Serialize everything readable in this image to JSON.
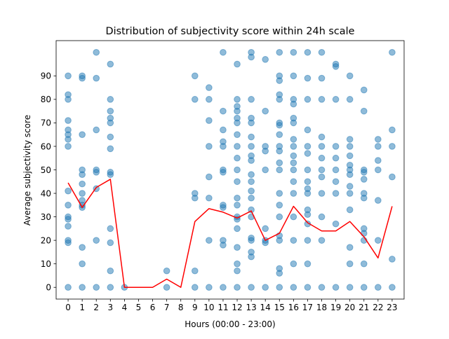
{
  "chart_data": {
    "type": "scatter",
    "title": "Distribution of subjectivity score within 24h scale",
    "xlabel": "Hours (00:00 - 23:00)",
    "ylabel": "Average subjectivity score",
    "xlim": [
      -0.85,
      23.85
    ],
    "ylim": [
      -5,
      105
    ],
    "x_ticks": [
      0,
      1,
      2,
      3,
      4,
      5,
      6,
      7,
      8,
      9,
      10,
      11,
      12,
      13,
      14,
      15,
      16,
      17,
      18,
      19,
      20,
      21,
      22,
      23
    ],
    "y_ticks": [
      0,
      10,
      20,
      30,
      40,
      50,
      60,
      70,
      80,
      90
    ],
    "grid": false,
    "legend": "none",
    "colors": {
      "scatter": "#1f77b4",
      "line": "#ff0000"
    },
    "series": [
      {
        "kind": "scatter",
        "points": [
          [
            0,
            0
          ],
          [
            0,
            19
          ],
          [
            0,
            20
          ],
          [
            0,
            26
          ],
          [
            0,
            29
          ],
          [
            0,
            30
          ],
          [
            0,
            35
          ],
          [
            0,
            41
          ],
          [
            0,
            60
          ],
          [
            0,
            63
          ],
          [
            0,
            65
          ],
          [
            0,
            67
          ],
          [
            0,
            71
          ],
          [
            0,
            80
          ],
          [
            0,
            82
          ],
          [
            0,
            90
          ],
          [
            1,
            0
          ],
          [
            1,
            10
          ],
          [
            1,
            17
          ],
          [
            1,
            34
          ],
          [
            1,
            35
          ],
          [
            1,
            37
          ],
          [
            1,
            40
          ],
          [
            1,
            44
          ],
          [
            1,
            48
          ],
          [
            1,
            50
          ],
          [
            1,
            65
          ],
          [
            1,
            89
          ],
          [
            1,
            90
          ],
          [
            2,
            0
          ],
          [
            2,
            20
          ],
          [
            2,
            42
          ],
          [
            2,
            49
          ],
          [
            2,
            50
          ],
          [
            2,
            67
          ],
          [
            2,
            89
          ],
          [
            2,
            100
          ],
          [
            3,
            0
          ],
          [
            3,
            7
          ],
          [
            3,
            19
          ],
          [
            3,
            25
          ],
          [
            3,
            48
          ],
          [
            3,
            49
          ],
          [
            3,
            59
          ],
          [
            3,
            64
          ],
          [
            3,
            70
          ],
          [
            3,
            72
          ],
          [
            3,
            75
          ],
          [
            3,
            80
          ],
          [
            3,
            95
          ],
          [
            4,
            0
          ],
          [
            7,
            0
          ],
          [
            7,
            7
          ],
          [
            9,
            0
          ],
          [
            9,
            7
          ],
          [
            9,
            38
          ],
          [
            9,
            40
          ],
          [
            9,
            80
          ],
          [
            9,
            90
          ],
          [
            10,
            0
          ],
          [
            10,
            20
          ],
          [
            10,
            38
          ],
          [
            10,
            47
          ],
          [
            10,
            60
          ],
          [
            10,
            71
          ],
          [
            10,
            80
          ],
          [
            10,
            85
          ],
          [
            11,
            0
          ],
          [
            11,
            18
          ],
          [
            11,
            20
          ],
          [
            11,
            34
          ],
          [
            11,
            35
          ],
          [
            11,
            49
          ],
          [
            11,
            50
          ],
          [
            11,
            60
          ],
          [
            11,
            62
          ],
          [
            11,
            67
          ],
          [
            11,
            75
          ],
          [
            11,
            100
          ],
          [
            12,
            0
          ],
          [
            12,
            7
          ],
          [
            12,
            10
          ],
          [
            12,
            17
          ],
          [
            12,
            25
          ],
          [
            12,
            29
          ],
          [
            12,
            30
          ],
          [
            12,
            35
          ],
          [
            12,
            38
          ],
          [
            12,
            45
          ],
          [
            12,
            50
          ],
          [
            12,
            55
          ],
          [
            12,
            60
          ],
          [
            12,
            65
          ],
          [
            12,
            70
          ],
          [
            12,
            72
          ],
          [
            12,
            75
          ],
          [
            12,
            77
          ],
          [
            12,
            80
          ],
          [
            12,
            95
          ],
          [
            13,
            0
          ],
          [
            13,
            13
          ],
          [
            13,
            15
          ],
          [
            13,
            20
          ],
          [
            13,
            21
          ],
          [
            13,
            30
          ],
          [
            13,
            33
          ],
          [
            13,
            38
          ],
          [
            13,
            41
          ],
          [
            13,
            45
          ],
          [
            13,
            48
          ],
          [
            13,
            54
          ],
          [
            13,
            56
          ],
          [
            13,
            60
          ],
          [
            13,
            64
          ],
          [
            13,
            70
          ],
          [
            13,
            72
          ],
          [
            13,
            80
          ],
          [
            13,
            98
          ],
          [
            13,
            100
          ],
          [
            14,
            0
          ],
          [
            14,
            19
          ],
          [
            14,
            20
          ],
          [
            14,
            25
          ],
          [
            14,
            50
          ],
          [
            14,
            58
          ],
          [
            14,
            60
          ],
          [
            14,
            75
          ],
          [
            14,
            97
          ],
          [
            15,
            0
          ],
          [
            15,
            6
          ],
          [
            15,
            8
          ],
          [
            15,
            20
          ],
          [
            15,
            22
          ],
          [
            15,
            30
          ],
          [
            15,
            35
          ],
          [
            15,
            40
          ],
          [
            15,
            50
          ],
          [
            15,
            53
          ],
          [
            15,
            58
          ],
          [
            15,
            60
          ],
          [
            15,
            65
          ],
          [
            15,
            69
          ],
          [
            15,
            70
          ],
          [
            15,
            80
          ],
          [
            15,
            82
          ],
          [
            15,
            88
          ],
          [
            15,
            90
          ],
          [
            15,
            100
          ],
          [
            16,
            0
          ],
          [
            16,
            10
          ],
          [
            16,
            20
          ],
          [
            16,
            30
          ],
          [
            16,
            40
          ],
          [
            16,
            45
          ],
          [
            16,
            50
          ],
          [
            16,
            53
          ],
          [
            16,
            56
          ],
          [
            16,
            60
          ],
          [
            16,
            63
          ],
          [
            16,
            70
          ],
          [
            16,
            72
          ],
          [
            16,
            78
          ],
          [
            16,
            80
          ],
          [
            16,
            90
          ],
          [
            16,
            100
          ],
          [
            17,
            0
          ],
          [
            17,
            10
          ],
          [
            17,
            20
          ],
          [
            17,
            27
          ],
          [
            17,
            31
          ],
          [
            17,
            33
          ],
          [
            17,
            40
          ],
          [
            17,
            42
          ],
          [
            17,
            45
          ],
          [
            17,
            50
          ],
          [
            17,
            57
          ],
          [
            17,
            60
          ],
          [
            17,
            67
          ],
          [
            17,
            80
          ],
          [
            17,
            89
          ],
          [
            17,
            100
          ],
          [
            18,
            0
          ],
          [
            18,
            20
          ],
          [
            18,
            30
          ],
          [
            18,
            40
          ],
          [
            18,
            47
          ],
          [
            18,
            50
          ],
          [
            18,
            55
          ],
          [
            18,
            60
          ],
          [
            18,
            64
          ],
          [
            18,
            80
          ],
          [
            18,
            89
          ],
          [
            18,
            100
          ],
          [
            19,
            0
          ],
          [
            19,
            27
          ],
          [
            19,
            40
          ],
          [
            19,
            45
          ],
          [
            19,
            50
          ],
          [
            19,
            55
          ],
          [
            19,
            60
          ],
          [
            19,
            80
          ],
          [
            19,
            94
          ],
          [
            19,
            95
          ],
          [
            20,
            0
          ],
          [
            20,
            10
          ],
          [
            20,
            17
          ],
          [
            20,
            33
          ],
          [
            20,
            40
          ],
          [
            20,
            43
          ],
          [
            20,
            48
          ],
          [
            20,
            50
          ],
          [
            20,
            52
          ],
          [
            20,
            56
          ],
          [
            20,
            60
          ],
          [
            20,
            63
          ],
          [
            20,
            80
          ],
          [
            20,
            90
          ],
          [
            21,
            0
          ],
          [
            21,
            10
          ],
          [
            21,
            20
          ],
          [
            21,
            23
          ],
          [
            21,
            25
          ],
          [
            21,
            38
          ],
          [
            21,
            40
          ],
          [
            21,
            46
          ],
          [
            21,
            49
          ],
          [
            21,
            50
          ],
          [
            21,
            75
          ],
          [
            21,
            84
          ],
          [
            22,
            0
          ],
          [
            22,
            20
          ],
          [
            22,
            37
          ],
          [
            22,
            50
          ],
          [
            22,
            54
          ],
          [
            22,
            60
          ],
          [
            22,
            63
          ],
          [
            23,
            0
          ],
          [
            23,
            12
          ],
          [
            23,
            47
          ],
          [
            23,
            60
          ],
          [
            23,
            67
          ],
          [
            23,
            100
          ]
        ]
      },
      {
        "kind": "line",
        "x": [
          0,
          1,
          2,
          3,
          4,
          5,
          6,
          7,
          8,
          9,
          10,
          11,
          12,
          13,
          14,
          15,
          16,
          17,
          18,
          19,
          20,
          21,
          22,
          23
        ],
        "values": [
          44.5,
          34,
          42.5,
          46,
          0,
          0,
          0,
          3.5,
          0,
          28,
          33.5,
          32,
          29.5,
          32.5,
          20,
          23,
          34.5,
          27.5,
          24,
          24,
          28,
          21.5,
          12.5,
          34.5
        ]
      }
    ]
  }
}
